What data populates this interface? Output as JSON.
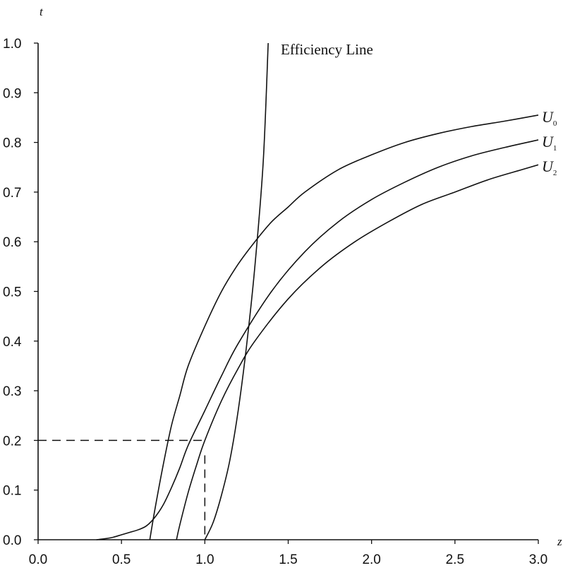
{
  "chart_data": {
    "type": "line",
    "title": "",
    "xlabel": "z",
    "ylabel": "t",
    "xlim": [
      0.0,
      3.0
    ],
    "ylim": [
      0.0,
      1.0
    ],
    "x_ticks": [
      "0.0",
      "0.5",
      "1.0",
      "1.5",
      "2.0",
      "2.5",
      "3.0"
    ],
    "y_ticks": [
      "0.0",
      "0.1",
      "0.2",
      "0.3",
      "0.4",
      "0.5",
      "0.6",
      "0.7",
      "0.8",
      "0.9",
      "1.0"
    ],
    "grid": false,
    "series": [
      {
        "name": "U",
        "subscript": "0",
        "points": [
          [
            0.67,
            0.0
          ],
          [
            0.7,
            0.06
          ],
          [
            0.75,
            0.15
          ],
          [
            0.8,
            0.23
          ],
          [
            0.85,
            0.29
          ],
          [
            0.9,
            0.35
          ],
          [
            1.0,
            0.43
          ],
          [
            1.1,
            0.5
          ],
          [
            1.2,
            0.555
          ],
          [
            1.3,
            0.6
          ],
          [
            1.4,
            0.64
          ],
          [
            1.5,
            0.67
          ],
          [
            1.6,
            0.7
          ],
          [
            1.8,
            0.745
          ],
          [
            2.0,
            0.775
          ],
          [
            2.2,
            0.8
          ],
          [
            2.4,
            0.818
          ],
          [
            2.6,
            0.832
          ],
          [
            2.8,
            0.843
          ],
          [
            3.0,
            0.855
          ]
        ]
      },
      {
        "name": "U",
        "subscript": "1",
        "points": [
          [
            0.35,
            0.0
          ],
          [
            0.4,
            0.002
          ],
          [
            0.45,
            0.005
          ],
          [
            0.5,
            0.01
          ],
          [
            0.55,
            0.015
          ],
          [
            0.6,
            0.02
          ],
          [
            0.65,
            0.028
          ],
          [
            0.7,
            0.045
          ],
          [
            0.75,
            0.07
          ],
          [
            0.8,
            0.105
          ],
          [
            0.85,
            0.145
          ],
          [
            0.9,
            0.19
          ],
          [
            1.0,
            0.26
          ],
          [
            1.1,
            0.33
          ],
          [
            1.2,
            0.395
          ],
          [
            1.4,
            0.5
          ],
          [
            1.6,
            0.58
          ],
          [
            1.8,
            0.64
          ],
          [
            2.0,
            0.685
          ],
          [
            2.2,
            0.72
          ],
          [
            2.4,
            0.75
          ],
          [
            2.6,
            0.773
          ],
          [
            2.8,
            0.79
          ],
          [
            3.0,
            0.805
          ]
        ]
      },
      {
        "name": "U",
        "subscript": "2",
        "points": [
          [
            0.83,
            0.0
          ],
          [
            0.85,
            0.03
          ],
          [
            0.9,
            0.095
          ],
          [
            0.95,
            0.15
          ],
          [
            1.0,
            0.2
          ],
          [
            1.1,
            0.28
          ],
          [
            1.2,
            0.345
          ],
          [
            1.3,
            0.4
          ],
          [
            1.5,
            0.485
          ],
          [
            1.7,
            0.55
          ],
          [
            1.9,
            0.6
          ],
          [
            2.1,
            0.64
          ],
          [
            2.3,
            0.675
          ],
          [
            2.5,
            0.7
          ],
          [
            2.7,
            0.725
          ],
          [
            2.9,
            0.745
          ],
          [
            3.0,
            0.755
          ]
        ]
      },
      {
        "name": "Efficiency Line",
        "points": [
          [
            1.0,
            0.0
          ],
          [
            1.05,
            0.035
          ],
          [
            1.1,
            0.09
          ],
          [
            1.15,
            0.16
          ],
          [
            1.2,
            0.26
          ],
          [
            1.25,
            0.39
          ],
          [
            1.3,
            0.55
          ],
          [
            1.35,
            0.76
          ],
          [
            1.38,
            1.0
          ]
        ]
      }
    ],
    "reference_point": {
      "x": 1.0,
      "y": 0.2
    },
    "annotation": "Efficiency Line"
  }
}
